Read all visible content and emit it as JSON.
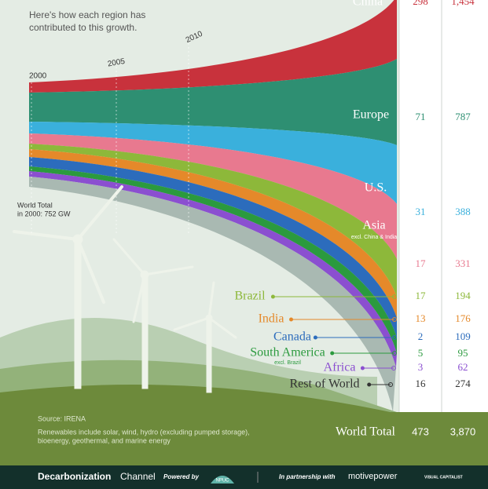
{
  "header": {
    "subtitle_line1": "Here's how each region has",
    "subtitle_line2": "contributed to this growth.",
    "years": [
      "2000",
      "2005",
      "2010"
    ],
    "world_2000_line1": "World Total",
    "world_2000_line2": "in 2000: 752 GW"
  },
  "regions": [
    {
      "name": "China",
      "color": "#c8323c",
      "v1": 298,
      "v2": "1,454"
    },
    {
      "name": "Europe",
      "color": "#2e8f72",
      "v1": 71,
      "v2": 787
    },
    {
      "name": "U.S.",
      "color": "#3ab0dc",
      "v1": 31,
      "v2": 388
    },
    {
      "name": "Asia",
      "sub": "excl. China & India",
      "color": "#e8798f",
      "v1": 17,
      "v2": 331
    },
    {
      "name": "Brazil",
      "color": "#8db83a",
      "v1": 17,
      "v2": 194
    },
    {
      "name": "India",
      "color": "#e5892a",
      "v1": 13,
      "v2": 176
    },
    {
      "name": "Canada",
      "color": "#2c6cbc",
      "v1": 2,
      "v2": 109
    },
    {
      "name": "South America",
      "sub": "excl. Brazil",
      "color": "#2b9a3e",
      "v1": 5,
      "v2": 95
    },
    {
      "name": "Africa",
      "color": "#8b4fd0",
      "v1": 3,
      "v2": 62
    },
    {
      "name": "Rest of World",
      "color": "#a9b9b2",
      "v1": 16,
      "v2": 274
    }
  ],
  "total": {
    "label": "World Total",
    "v1": 473,
    "v2": "3,870"
  },
  "notes": {
    "source": "Source: IRENA",
    "line1": "Renewables include solar, wind, hydro (excluding pumped storage),",
    "line2": "bioenergy, geothermal, and marine energy"
  },
  "footer": {
    "brand": "Decarbonization",
    "brand2": "Channel",
    "powered": "Powered by",
    "npuc": "NPUC",
    "partner": "In partnership with",
    "motive": "motivepower",
    "vc": "VISUAL CAPITALIST"
  }
}
